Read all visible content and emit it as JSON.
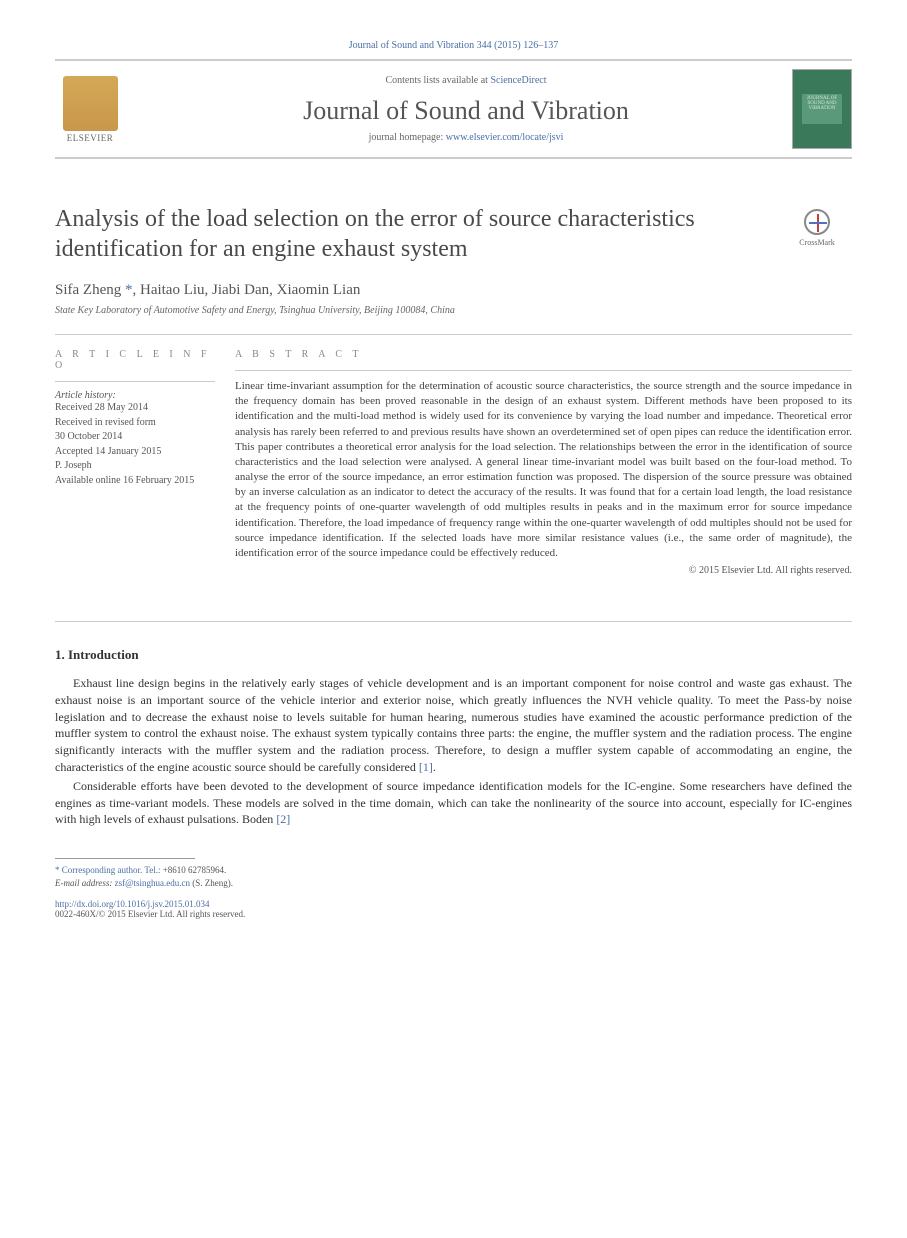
{
  "citation": "Journal of Sound and Vibration 344 (2015) 126–137",
  "header": {
    "contents_prefix": "Contents lists available at ",
    "contents_link": "ScienceDirect",
    "journal_name": "Journal of Sound and Vibration",
    "homepage_prefix": "journal homepage: ",
    "homepage_link": "www.elsevier.com/locate/jsvi",
    "publisher": "ELSEVIER",
    "cover_text": "JOURNAL OF SOUND AND VIBRATION"
  },
  "crossmark_label": "CrossMark",
  "article": {
    "title": "Analysis of the load selection on the error of source characteristics identification for an engine exhaust system",
    "authors": "Sifa Zheng *, Haitao Liu, Jiabi Dan, Xiaomin Lian",
    "affiliation": "State Key Laboratory of Automotive Safety and Energy, Tsinghua University, Beijing 100084, China"
  },
  "labels": {
    "article_info": "A R T I C L E  I N F O",
    "abstract": "A B S T R A C T",
    "history_heading": "Article history:"
  },
  "history": {
    "received": "Received 28 May 2014",
    "revised": "Received in revised form",
    "revised_date": "30 October 2014",
    "accepted": "Accepted 14 January 2015",
    "editor": "P. Joseph",
    "online": "Available online 16 February 2015"
  },
  "abstract_text": "Linear time-invariant assumption for the determination of acoustic source characteristics, the source strength and the source impedance in the frequency domain has been proved reasonable in the design of an exhaust system. Different methods have been proposed to its identification and the multi-load method is widely used for its convenience by varying the load number and impedance. Theoretical error analysis has rarely been referred to and previous results have shown an overdetermined set of open pipes can reduce the identification error. This paper contributes a theoretical error analysis for the load selection. The relationships between the error in the identification of source characteristics and the load selection were analysed. A general linear time-invariant model was built based on the four-load method. To analyse the error of the source impedance, an error estimation function was proposed. The dispersion of the source pressure was obtained by an inverse calculation as an indicator to detect the accuracy of the results. It was found that for a certain load length, the load resistance at the frequency points of one-quarter wavelength of odd multiples results in peaks and in the maximum error for source impedance identification. Therefore, the load impedance of frequency range within the one-quarter wavelength of odd multiples should not be used for source impedance identification. If the selected loads have more similar resistance values (i.e., the same order of magnitude), the identification error of the source impedance could be effectively reduced.",
  "copyright": "© 2015 Elsevier Ltd. All rights reserved.",
  "body": {
    "section_number": "1.",
    "section_title": "Introduction",
    "para1": "Exhaust line design begins in the relatively early stages of vehicle development and is an important component for noise control and waste gas exhaust. The exhaust noise is an important source of the vehicle interior and exterior noise, which greatly influences the NVH vehicle quality. To meet the Pass-by noise legislation and to decrease the exhaust noise to levels suitable for human hearing, numerous studies have examined the acoustic performance prediction of the muffler system to control the exhaust noise. The exhaust system typically contains three parts: the engine, the muffler system and the radiation process. The engine significantly interacts with the muffler system and the radiation process. Therefore, to design a muffler system capable of accommodating an engine, the characteristics of the engine acoustic source should be carefully considered ",
    "ref1": "[1]",
    "para1_end": ".",
    "para2": "Considerable efforts have been devoted to the development of source impedance identification models for the IC-engine. Some researchers have defined the engines as time-variant models. These models are solved in the time domain, which can take the nonlinearity of the source into account, especially for IC-engines with high levels of exhaust pulsations. Boden ",
    "ref2": "[2]"
  },
  "footnote": {
    "corr_label": "* Corresponding author. Tel.:",
    "corr_tel": "+8610 62785964.",
    "email_label": "E-mail address: ",
    "email": "zsf@tsinghua.edu.cn",
    "email_suffix": " (S. Zheng)."
  },
  "doi": "http://dx.doi.org/10.1016/j.jsv.2015.01.034",
  "issn_line": "0022-460X/© 2015 Elsevier Ltd. All rights reserved.",
  "colors": {
    "link": "#4a6fa5",
    "text": "#333333",
    "muted": "#666666",
    "rule": "#cccccc",
    "elsevier": "#d4a857",
    "cover": "#3a7a5a"
  }
}
